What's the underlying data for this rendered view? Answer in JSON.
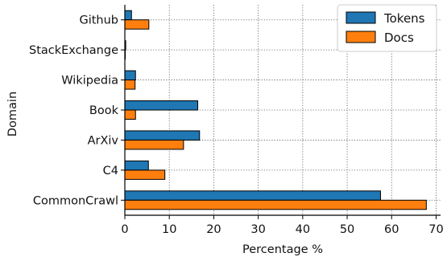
{
  "chart_data": {
    "type": "bar",
    "orientation": "horizontal",
    "title": "",
    "xlabel": "Percentage %",
    "ylabel": "Domain",
    "xlim": [
      0,
      71
    ],
    "xticks": [
      0,
      10,
      20,
      30,
      40,
      50,
      60,
      70
    ],
    "categories": [
      "CommonCrawl",
      "C4",
      "ArXiv",
      "Book",
      "Wikipedia",
      "StackExchange",
      "Github"
    ],
    "series": [
      {
        "name": "Tokens",
        "color": "#1f77b4",
        "values": [
          57.5,
          5.3,
          16.8,
          16.4,
          2.4,
          0.2,
          1.5
        ]
      },
      {
        "name": "Docs",
        "color": "#ff7f0e",
        "values": [
          67.8,
          9.0,
          13.2,
          2.4,
          2.3,
          0.1,
          5.4
        ]
      }
    ],
    "grid": "dotted",
    "legend_position": "top-right"
  }
}
